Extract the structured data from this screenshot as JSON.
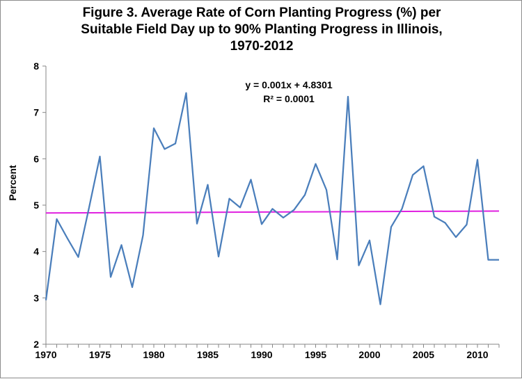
{
  "chart_data": {
    "type": "line",
    "title_lines": [
      "Figure 3. Average Rate of Corn Planting Progress (%) per",
      "Suitable Field Day up to 90% Planting Progress in Illinois,",
      "1970-2012"
    ],
    "xlabel": "",
    "ylabel": "Percent",
    "xlim": [
      1970,
      2012
    ],
    "ylim": [
      2,
      8
    ],
    "x_ticks": [
      1970,
      1975,
      1980,
      1985,
      1990,
      1995,
      2000,
      2005,
      2010
    ],
    "y_ticks": [
      2,
      3,
      4,
      5,
      6,
      7,
      8
    ],
    "grid": false,
    "legend": "none",
    "series": [
      {
        "color": "#4a7ebb",
        "x": [
          1970,
          1971,
          1972,
          1973,
          1974,
          1975,
          1976,
          1977,
          1978,
          1979,
          1980,
          1981,
          1982,
          1983,
          1984,
          1985,
          1986,
          1987,
          1988,
          1989,
          1990,
          1991,
          1992,
          1993,
          1994,
          1995,
          1996,
          1997,
          1998,
          1999,
          2000,
          2001,
          2002,
          2003,
          2004,
          2005,
          2006,
          2007,
          2008,
          2009,
          2010,
          2011,
          2012
        ],
        "y": [
          2.95,
          4.7,
          4.28,
          3.88,
          4.95,
          6.05,
          3.45,
          4.14,
          3.23,
          4.35,
          6.66,
          6.21,
          6.33,
          7.42,
          4.6,
          5.44,
          3.89,
          5.14,
          4.95,
          5.55,
          4.59,
          4.92,
          4.73,
          4.9,
          5.22,
          5.89,
          5.33,
          3.83,
          7.34,
          3.7,
          4.24,
          2.86,
          4.53,
          4.92,
          5.65,
          5.84,
          4.75,
          4.62,
          4.31,
          4.58,
          5.98,
          3.82,
          3.82
        ]
      }
    ],
    "trendline": {
      "color": "#e020e0",
      "slope": 0.001,
      "intercept": 4.8301,
      "equation": "y = 0.001x + 4.8301",
      "r_squared": "R² = 0.0001"
    }
  }
}
